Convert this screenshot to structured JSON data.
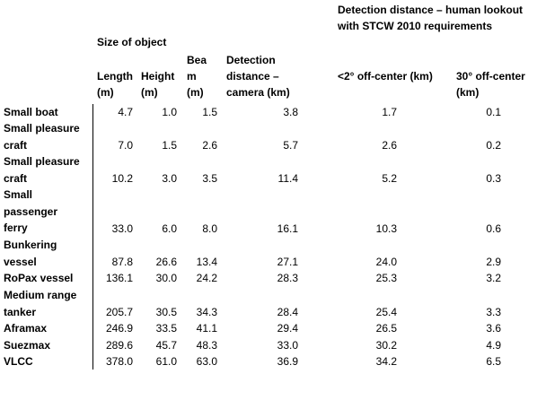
{
  "header": {
    "group_size": "Size of object",
    "group_human": "Detection distance – human lookout with STCW 2010 requirements",
    "col_length": "Length (m)",
    "col_height": "Height (m)",
    "col_beam": "Beam (m)",
    "col_camera": "Detection distance – camera (km)",
    "col_lt2": "<2° off-center (km)",
    "col_30": "30° off-center (km)"
  },
  "rows": [
    {
      "name": "Small boat",
      "length": "4.7",
      "height": "1.0",
      "beam": "1.5",
      "camera": "3.8",
      "lt2": "1.7",
      "off30": "0.1"
    },
    {
      "name": "Small pleasure craft",
      "length": "7.0",
      "height": "1.5",
      "beam": "2.6",
      "camera": "5.7",
      "lt2": "2.6",
      "off30": "0.2"
    },
    {
      "name": "Small pleasure craft",
      "length": "10.2",
      "height": "3.0",
      "beam": "3.5",
      "camera": "11.4",
      "lt2": "5.2",
      "off30": "0.3"
    },
    {
      "name": "Small passenger ferry",
      "length": "33.0",
      "height": "6.0",
      "beam": "8.0",
      "camera": "16.1",
      "lt2": "10.3",
      "off30": "0.6"
    },
    {
      "name": "Bunkering vessel",
      "length": "87.8",
      "height": "26.6",
      "beam": "13.4",
      "camera": "27.1",
      "lt2": "24.0",
      "off30": "2.9"
    },
    {
      "name": "RoPax vessel",
      "length": "136.1",
      "height": "30.0",
      "beam": "24.2",
      "camera": "28.3",
      "lt2": "25.3",
      "off30": "3.2"
    },
    {
      "name": "Medium range tanker",
      "length": "205.7",
      "height": "30.5",
      "beam": "34.3",
      "camera": "28.4",
      "lt2": "25.4",
      "off30": "3.3"
    },
    {
      "name": "Aframax",
      "length": "246.9",
      "height": "33.5",
      "beam": "41.1",
      "camera": "29.4",
      "lt2": "26.5",
      "off30": "3.6"
    },
    {
      "name": "Suezmax",
      "length": "289.6",
      "height": "45.7",
      "beam": "48.3",
      "camera": "33.0",
      "lt2": "30.2",
      "off30": "4.9"
    },
    {
      "name": "VLCC",
      "length": "378.0",
      "height": "61.0",
      "beam": "63.0",
      "camera": "36.9",
      "lt2": "34.2",
      "off30": "6.5"
    }
  ]
}
